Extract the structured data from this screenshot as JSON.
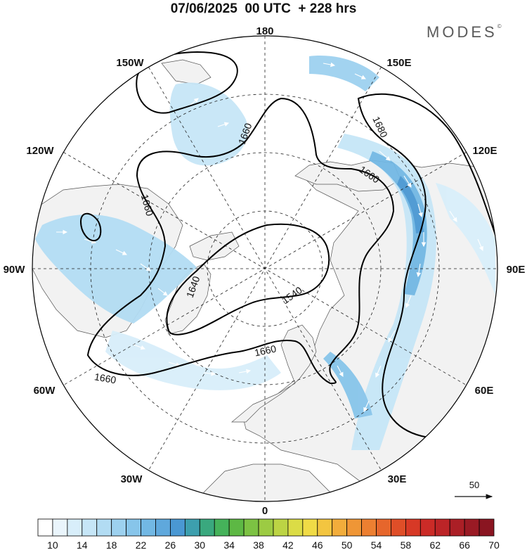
{
  "header": {
    "title": "07/06/2025  00 UTC  + 228 hrs",
    "brand": "MODES",
    "brand_mark": "©"
  },
  "map": {
    "projection": "north-polar-stereographic",
    "longitude_labels": [
      "180",
      "150E",
      "120E",
      "90E",
      "60E",
      "30E",
      "0",
      "30W",
      "60W",
      "90W",
      "120W",
      "150W"
    ],
    "contour_labels": [
      "1660",
      "1680",
      "1660",
      "1660",
      "1640",
      "1540",
      "1660",
      "1660"
    ],
    "vector_reference": {
      "value": "50",
      "icon": "arrow-right-icon"
    },
    "colors": {
      "land": "#f2f2f2",
      "ocean": "#ffffff",
      "contour": "#000000",
      "jet_light": "#d6ecf8",
      "jet_mid": "#a9d6f1",
      "jet_strong": "#5fa7dc"
    }
  },
  "colorbar": {
    "colors": [
      "#ffffff",
      "#eaf5fc",
      "#d8eefa",
      "#c6e6f7",
      "#b2dcf3",
      "#9dd1ef",
      "#87c5ea",
      "#72b8e4",
      "#5fa8dc",
      "#4a98d3",
      "#3d9fae",
      "#3aa87e",
      "#45b25a",
      "#5db844",
      "#7cc243",
      "#9ccb43",
      "#bcd444",
      "#dbdc46",
      "#f0db46",
      "#f3c540",
      "#f2ad3b",
      "#ef9636",
      "#ec7f31",
      "#e6662c",
      "#df4e28",
      "#d73926",
      "#cb2b27",
      "#bc2427",
      "#ab1f26",
      "#9a1a24",
      "#8a1521"
    ],
    "tick_labels": [
      "10",
      "14",
      "18",
      "22",
      "26",
      "30",
      "34",
      "38",
      "42",
      "46",
      "50",
      "54",
      "58",
      "62",
      "66",
      "70"
    ]
  }
}
